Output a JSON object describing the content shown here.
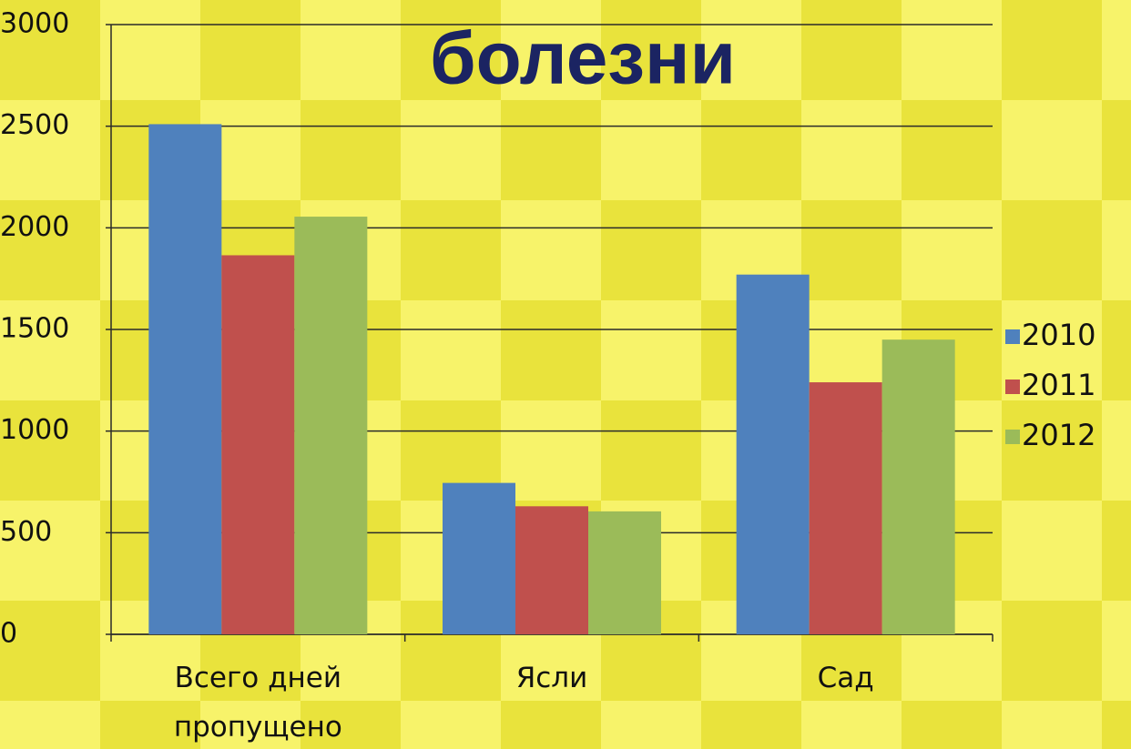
{
  "chart_data": {
    "type": "bar",
    "title": "болезни",
    "categories": [
      "Всего дней пропущено",
      "Ясли",
      "Сад"
    ],
    "series": [
      {
        "name": "2010",
        "color": "#4f81bd",
        "values": [
          2510,
          745,
          1770
        ]
      },
      {
        "name": "2011",
        "color": "#c0504d",
        "values": [
          1865,
          630,
          1240
        ]
      },
      {
        "name": "2012",
        "color": "#9bbb59",
        "values": [
          2055,
          605,
          1450
        ]
      }
    ],
    "ylim": [
      0,
      3000
    ],
    "yticks": [
      0,
      500,
      1000,
      1500,
      2000,
      2500,
      3000
    ],
    "grid": true,
    "legend": "right"
  }
}
